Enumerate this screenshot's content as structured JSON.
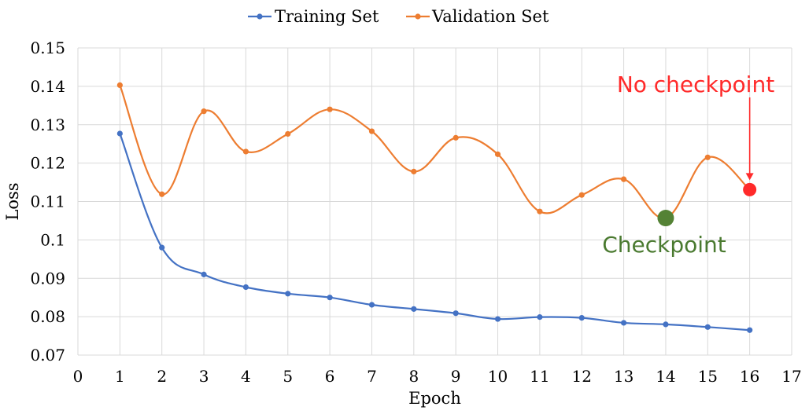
{
  "chart_data": {
    "type": "line",
    "title": "",
    "xlabel": "Epoch",
    "ylabel": "Loss",
    "xlim": [
      0,
      17
    ],
    "ylim": [
      0.07,
      0.15
    ],
    "x_ticks": [
      0,
      1,
      2,
      3,
      4,
      5,
      6,
      7,
      8,
      9,
      10,
      11,
      12,
      13,
      14,
      15,
      16,
      17
    ],
    "y_ticks": [
      0.07,
      0.08,
      0.09,
      0.1,
      0.11,
      0.12,
      0.13,
      0.14,
      0.15
    ],
    "y_tick_labels": [
      "0.07",
      "0.08",
      "0.09",
      "0.1",
      "0.11",
      "0.12",
      "0.13",
      "0.14",
      "0.15"
    ],
    "grid": true,
    "legend_position": "top-center",
    "x": [
      1,
      2,
      3,
      4,
      5,
      6,
      7,
      8,
      9,
      10,
      11,
      12,
      13,
      14,
      15,
      16
    ],
    "series": [
      {
        "name": "Training Set",
        "color": "#4472C4",
        "values": [
          0.1277,
          0.098,
          0.091,
          0.0877,
          0.086,
          0.085,
          0.0831,
          0.082,
          0.0809,
          0.0794,
          0.0799,
          0.0797,
          0.0784,
          0.078,
          0.0773,
          0.0765
        ]
      },
      {
        "name": "Validation Set",
        "color": "#ED7D31",
        "values": [
          0.1403,
          0.1119,
          0.1335,
          0.123,
          0.1276,
          0.134,
          0.1283,
          0.1178,
          0.1266,
          0.1223,
          0.1074,
          0.1117,
          0.1158,
          0.1057,
          0.1215,
          0.1131
        ]
      }
    ],
    "annotations": [
      {
        "text": "No checkpoint",
        "color": "#FF2A2A",
        "x": 16,
        "y": 0.1131,
        "marker": "red-dot",
        "arrow": true
      },
      {
        "text": "Checkpoint",
        "color": "#4A7A30",
        "x": 14,
        "y": 0.1057,
        "marker": "green-dot",
        "arrow": false
      }
    ]
  }
}
